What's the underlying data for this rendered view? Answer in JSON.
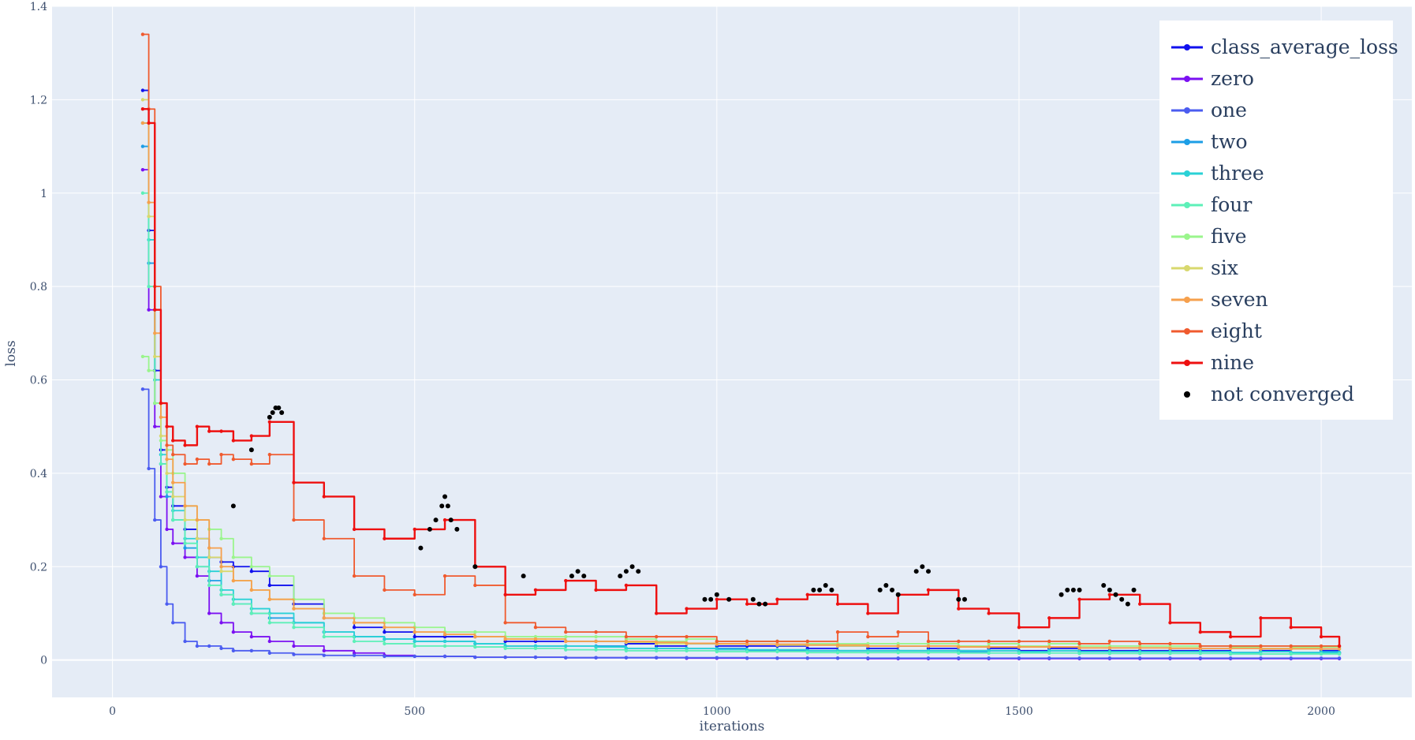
{
  "chart_data": {
    "type": "line",
    "title": "",
    "xlabel": "iterations",
    "ylabel": "loss",
    "xlim": [
      -100,
      2150
    ],
    "ylim": [
      -0.08,
      1.4
    ],
    "x_ticks": [
      0,
      500,
      1000,
      1500,
      2000
    ],
    "x_tick_labels": [
      "0",
      "500",
      "1000",
      "1500",
      "2000"
    ],
    "y_ticks": [
      0,
      0.2,
      0.4,
      0.6,
      0.8,
      1,
      1.2,
      1.4
    ],
    "y_tick_labels": [
      "0",
      "0.2",
      "0.4",
      "0.6",
      "0.8",
      "1",
      "1.2",
      "1.4"
    ],
    "grid": true,
    "legend_position": "top-right",
    "plot_bgcolor": "#e5ecf6",
    "x": [
      50,
      60,
      70,
      80,
      90,
      100,
      120,
      140,
      160,
      180,
      200,
      230,
      260,
      300,
      350,
      400,
      450,
      500,
      550,
      600,
      650,
      700,
      750,
      800,
      850,
      900,
      950,
      1000,
      1050,
      1100,
      1150,
      1200,
      1250,
      1300,
      1350,
      1400,
      1450,
      1500,
      1550,
      1600,
      1650,
      1700,
      1750,
      1800,
      1850,
      1900,
      1950,
      2000,
      2030
    ],
    "series": [
      {
        "name": "class_average_loss",
        "color": "#1010ee",
        "values": [
          1.22,
          0.92,
          0.62,
          0.45,
          0.37,
          0.33,
          0.28,
          0.26,
          0.22,
          0.21,
          0.2,
          0.19,
          0.16,
          0.12,
          0.09,
          0.07,
          0.06,
          0.05,
          0.05,
          0.05,
          0.04,
          0.04,
          0.04,
          0.04,
          0.035,
          0.03,
          0.035,
          0.03,
          0.03,
          0.03,
          0.025,
          0.03,
          0.025,
          0.03,
          0.025,
          0.02,
          0.025,
          0.02,
          0.025,
          0.02,
          0.02,
          0.02,
          0.02,
          0.02,
          0.015,
          0.02,
          0.015,
          0.02,
          0.015
        ]
      },
      {
        "name": "zero",
        "color": "#7b10f2",
        "values": [
          1.05,
          0.75,
          0.5,
          0.35,
          0.28,
          0.25,
          0.22,
          0.18,
          0.1,
          0.08,
          0.06,
          0.05,
          0.04,
          0.03,
          0.02,
          0.015,
          0.01,
          0.008,
          0.008,
          0.006,
          0.006,
          0.006,
          0.005,
          0.005,
          0.005,
          0.005,
          0.004,
          0.004,
          0.004,
          0.004,
          0.004,
          0.004,
          0.003,
          0.003,
          0.003,
          0.003,
          0.003,
          0.003,
          0.003,
          0.003,
          0.003,
          0.003,
          0.003,
          0.003,
          0.003,
          0.003,
          0.003,
          0.003,
          0.003
        ]
      },
      {
        "name": "one",
        "color": "#4b5cf0",
        "values": [
          0.58,
          0.41,
          0.3,
          0.2,
          0.12,
          0.08,
          0.04,
          0.03,
          0.03,
          0.025,
          0.02,
          0.02,
          0.015,
          0.012,
          0.01,
          0.01,
          0.008,
          0.008,
          0.008,
          0.006,
          0.006,
          0.006,
          0.005,
          0.005,
          0.005,
          0.005,
          0.005,
          0.005,
          0.004,
          0.004,
          0.004,
          0.004,
          0.004,
          0.004,
          0.004,
          0.004,
          0.004,
          0.004,
          0.004,
          0.004,
          0.004,
          0.004,
          0.004,
          0.004,
          0.004,
          0.004,
          0.004,
          0.004,
          0.004
        ]
      },
      {
        "name": "two",
        "color": "#1c9ee6",
        "values": [
          1.1,
          0.85,
          0.55,
          0.42,
          0.35,
          0.3,
          0.24,
          0.2,
          0.17,
          0.14,
          0.12,
          0.1,
          0.09,
          0.08,
          0.06,
          0.05,
          0.045,
          0.04,
          0.04,
          0.035,
          0.03,
          0.03,
          0.03,
          0.03,
          0.025,
          0.025,
          0.025,
          0.025,
          0.02,
          0.02,
          0.02,
          0.02,
          0.02,
          0.02,
          0.02,
          0.018,
          0.02,
          0.018,
          0.02,
          0.018,
          0.018,
          0.018,
          0.018,
          0.018,
          0.016,
          0.018,
          0.016,
          0.018,
          0.016
        ]
      },
      {
        "name": "three",
        "color": "#2ad1d6",
        "values": [
          1.15,
          0.9,
          0.6,
          0.44,
          0.36,
          0.32,
          0.26,
          0.22,
          0.19,
          0.15,
          0.13,
          0.11,
          0.1,
          0.08,
          0.06,
          0.05,
          0.045,
          0.04,
          0.04,
          0.035,
          0.03,
          0.03,
          0.03,
          0.028,
          0.025,
          0.025,
          0.025,
          0.022,
          0.022,
          0.022,
          0.02,
          0.02,
          0.02,
          0.02,
          0.02,
          0.02,
          0.02,
          0.018,
          0.02,
          0.018,
          0.018,
          0.018,
          0.018,
          0.018,
          0.016,
          0.018,
          0.016,
          0.016,
          0.016
        ]
      },
      {
        "name": "four",
        "color": "#5df0b8",
        "values": [
          1.0,
          0.8,
          0.55,
          0.42,
          0.36,
          0.3,
          0.25,
          0.2,
          0.16,
          0.14,
          0.12,
          0.1,
          0.08,
          0.07,
          0.05,
          0.04,
          0.035,
          0.03,
          0.03,
          0.028,
          0.025,
          0.025,
          0.022,
          0.022,
          0.02,
          0.02,
          0.02,
          0.018,
          0.018,
          0.018,
          0.016,
          0.016,
          0.016,
          0.016,
          0.016,
          0.015,
          0.015,
          0.015,
          0.015,
          0.014,
          0.014,
          0.014,
          0.014,
          0.014,
          0.013,
          0.013,
          0.013,
          0.013,
          0.013
        ]
      },
      {
        "name": "five",
        "color": "#9af58c",
        "values": [
          0.65,
          0.62,
          0.55,
          0.47,
          0.45,
          0.4,
          0.33,
          0.3,
          0.28,
          0.26,
          0.22,
          0.2,
          0.18,
          0.13,
          0.1,
          0.09,
          0.08,
          0.07,
          0.06,
          0.06,
          0.05,
          0.05,
          0.05,
          0.05,
          0.045,
          0.04,
          0.045,
          0.04,
          0.04,
          0.04,
          0.035,
          0.035,
          0.035,
          0.035,
          0.035,
          0.03,
          0.035,
          0.03,
          0.035,
          0.03,
          0.03,
          0.03,
          0.03,
          0.03,
          0.028,
          0.03,
          0.028,
          0.028,
          0.028
        ]
      },
      {
        "name": "six",
        "color": "#d8d86e",
        "values": [
          1.2,
          0.95,
          0.65,
          0.48,
          0.4,
          0.35,
          0.3,
          0.26,
          0.22,
          0.19,
          0.17,
          0.15,
          0.13,
          0.11,
          0.09,
          0.08,
          0.07,
          0.06,
          0.055,
          0.05,
          0.045,
          0.045,
          0.04,
          0.04,
          0.038,
          0.035,
          0.035,
          0.034,
          0.034,
          0.032,
          0.032,
          0.03,
          0.03,
          0.03,
          0.03,
          0.028,
          0.028,
          0.028,
          0.028,
          0.026,
          0.026,
          0.026,
          0.026,
          0.025,
          0.025,
          0.025,
          0.025,
          0.024,
          0.024
        ]
      },
      {
        "name": "seven",
        "color": "#f6a04d",
        "values": [
          1.15,
          0.98,
          0.7,
          0.52,
          0.43,
          0.38,
          0.33,
          0.3,
          0.24,
          0.2,
          0.17,
          0.15,
          0.13,
          0.11,
          0.09,
          0.08,
          0.07,
          0.06,
          0.055,
          0.05,
          0.045,
          0.045,
          0.04,
          0.04,
          0.04,
          0.038,
          0.036,
          0.035,
          0.034,
          0.034,
          0.032,
          0.032,
          0.03,
          0.03,
          0.03,
          0.028,
          0.028,
          0.028,
          0.028,
          0.026,
          0.026,
          0.026,
          0.025,
          0.025,
          0.025,
          0.024,
          0.024,
          0.024,
          0.024
        ]
      },
      {
        "name": "eight",
        "color": "#f05a2e",
        "values": [
          1.34,
          1.18,
          0.8,
          0.55,
          0.46,
          0.44,
          0.42,
          0.43,
          0.42,
          0.44,
          0.43,
          0.42,
          0.44,
          0.3,
          0.26,
          0.18,
          0.15,
          0.14,
          0.18,
          0.16,
          0.08,
          0.07,
          0.06,
          0.06,
          0.05,
          0.05,
          0.05,
          0.04,
          0.04,
          0.04,
          0.04,
          0.06,
          0.05,
          0.06,
          0.04,
          0.04,
          0.04,
          0.04,
          0.04,
          0.035,
          0.04,
          0.035,
          0.035,
          0.03,
          0.03,
          0.03,
          0.03,
          0.03,
          0.03
        ]
      },
      {
        "name": "nine",
        "color": "#ee1010",
        "values": [
          1.18,
          1.15,
          0.75,
          0.55,
          0.5,
          0.47,
          0.46,
          0.5,
          0.49,
          0.49,
          0.47,
          0.48,
          0.51,
          0.38,
          0.35,
          0.28,
          0.26,
          0.28,
          0.3,
          0.2,
          0.14,
          0.15,
          0.17,
          0.15,
          0.16,
          0.1,
          0.11,
          0.13,
          0.12,
          0.13,
          0.14,
          0.12,
          0.1,
          0.14,
          0.15,
          0.11,
          0.1,
          0.07,
          0.09,
          0.13,
          0.14,
          0.12,
          0.08,
          0.06,
          0.05,
          0.09,
          0.07,
          0.05,
          0.03
        ]
      },
      {
        "name": "not converged",
        "color": "#000000",
        "mode": "markers",
        "x": [
          200,
          230,
          260,
          265,
          270,
          275,
          280,
          510,
          525,
          535,
          545,
          550,
          555,
          560,
          570,
          600,
          680,
          760,
          770,
          780,
          840,
          850,
          860,
          870,
          980,
          990,
          1000,
          1020,
          1060,
          1070,
          1080,
          1160,
          1170,
          1180,
          1190,
          1270,
          1280,
          1290,
          1300,
          1330,
          1340,
          1350,
          1400,
          1410,
          1570,
          1580,
          1590,
          1600,
          1640,
          1650,
          1660,
          1670,
          1680,
          1690
        ],
        "values": [
          0.33,
          0.45,
          0.52,
          0.53,
          0.54,
          0.54,
          0.53,
          0.24,
          0.28,
          0.3,
          0.33,
          0.35,
          0.33,
          0.3,
          0.28,
          0.2,
          0.18,
          0.18,
          0.19,
          0.18,
          0.18,
          0.19,
          0.2,
          0.19,
          0.13,
          0.13,
          0.14,
          0.13,
          0.13,
          0.12,
          0.12,
          0.15,
          0.15,
          0.16,
          0.15,
          0.15,
          0.16,
          0.15,
          0.14,
          0.19,
          0.2,
          0.19,
          0.13,
          0.13,
          0.14,
          0.15,
          0.15,
          0.15,
          0.16,
          0.15,
          0.14,
          0.13,
          0.12,
          0.15
        ]
      }
    ]
  }
}
